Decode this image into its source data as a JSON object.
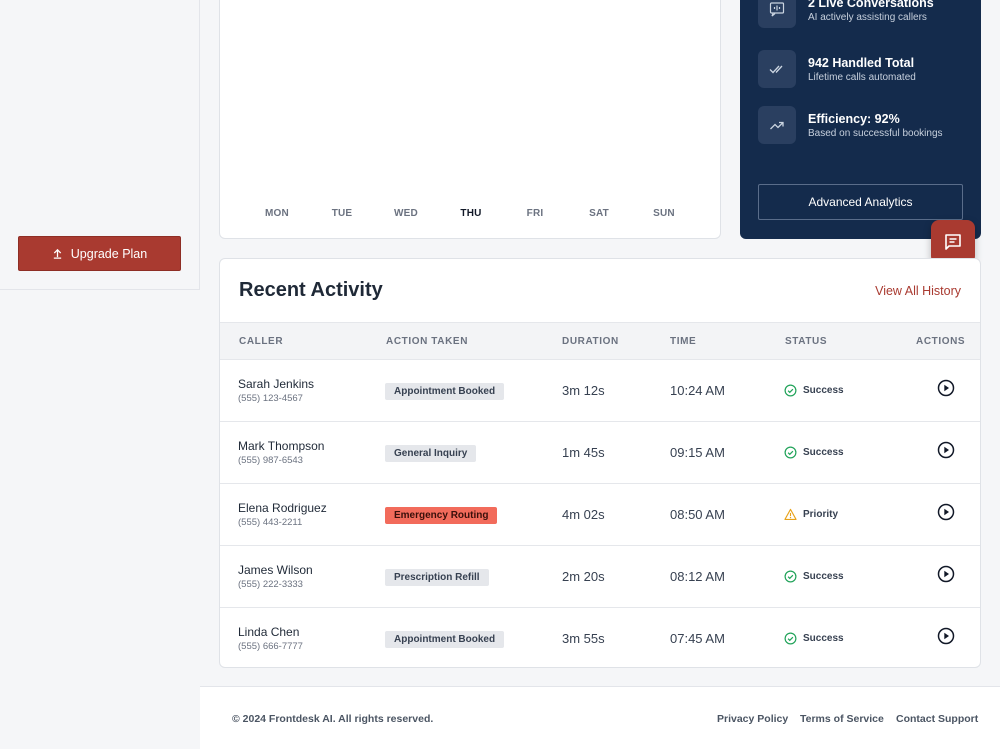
{
  "sidebar": {
    "upgrade_label": "Upgrade Plan"
  },
  "chart": {
    "days": [
      "MON",
      "TUE",
      "WED",
      "THU",
      "FRI",
      "SAT",
      "SUN"
    ],
    "active_day": "THU"
  },
  "stats": {
    "items": [
      {
        "title": "2 Live Conversations",
        "subtitle": "AI actively assisting callers",
        "icon": "audio-message-icon"
      },
      {
        "title": "942 Handled Total",
        "subtitle": "Lifetime calls automated",
        "icon": "double-check-icon"
      },
      {
        "title": "Efficiency: 92%",
        "subtitle": "Based on successful bookings",
        "icon": "trending-up-icon"
      }
    ],
    "advanced_label": "Advanced Analytics"
  },
  "activity": {
    "title": "Recent Activity",
    "view_all": "View All History",
    "columns": {
      "caller": "CALLER",
      "action": "ACTION TAKEN",
      "duration": "DURATION",
      "time": "TIME",
      "status": "STATUS",
      "actions": "ACTIONS"
    },
    "rows": [
      {
        "name": "Sarah Jenkins",
        "phone": "(555) 123-4567",
        "action": "Appointment Booked",
        "duration": "3m 12s",
        "time": "10:24 AM",
        "status": "Success"
      },
      {
        "name": "Mark Thompson",
        "phone": "(555) 987-6543",
        "action": "General Inquiry",
        "duration": "1m 45s",
        "time": "09:15 AM",
        "status": "Success"
      },
      {
        "name": "Elena Rodriguez",
        "phone": "(555) 443-2211",
        "action": "Emergency Routing",
        "duration": "4m 02s",
        "time": "08:50 AM",
        "status": "Priority"
      },
      {
        "name": "James Wilson",
        "phone": "(555) 222-3333",
        "action": "Prescription Refill",
        "duration": "2m 20s",
        "time": "08:12 AM",
        "status": "Success"
      },
      {
        "name": "Linda Chen",
        "phone": "(555) 666-7777",
        "action": "Appointment Booked",
        "duration": "3m 55s",
        "time": "07:45 AM",
        "status": "Success"
      }
    ]
  },
  "footer": {
    "copyright": "© 2024 Frontdesk AI. All rights reserved.",
    "links": [
      "Privacy Policy",
      "Terms of Service",
      "Contact Support"
    ]
  },
  "colors": {
    "accent": "#a93a30",
    "navy": "#142b4c",
    "success": "#22a35a",
    "warning": "#e8a21a",
    "emergency": "#f26b5b"
  }
}
